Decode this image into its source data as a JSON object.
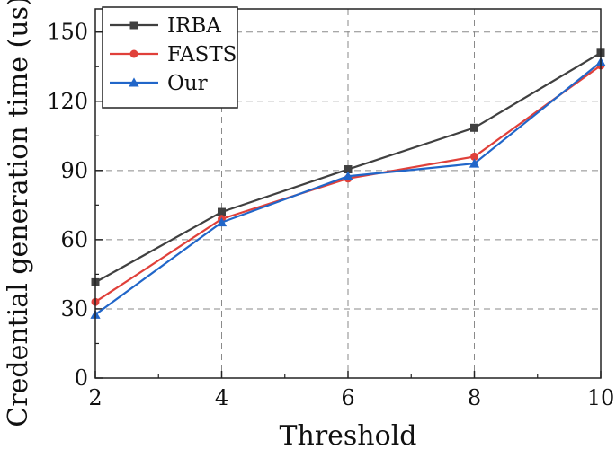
{
  "chart_data": {
    "type": "line",
    "title": "",
    "xlabel": "Threshold",
    "ylabel": "Credential generation time (us)",
    "x": [
      2,
      4,
      6,
      8,
      10
    ],
    "xlim": [
      2,
      10
    ],
    "ylim": [
      0,
      160
    ],
    "xticks": [
      "2",
      "4",
      "6",
      "8",
      "10"
    ],
    "yticks": [
      "0",
      "30",
      "60",
      "90",
      "120",
      "150"
    ],
    "grid": true,
    "legend_position": "top-left",
    "series": [
      {
        "name": "IRBA",
        "values": [
          41.5,
          72,
          90.5,
          108.5,
          141
        ],
        "color": "#404040",
        "marker": "square"
      },
      {
        "name": "FASTS",
        "values": [
          33,
          69,
          86.5,
          96,
          135.5
        ],
        "color": "#e0403a",
        "marker": "circle"
      },
      {
        "name": "Our",
        "values": [
          27.5,
          67.5,
          87.5,
          93,
          137
        ],
        "color": "#2166c9",
        "marker": "triangle"
      }
    ]
  }
}
